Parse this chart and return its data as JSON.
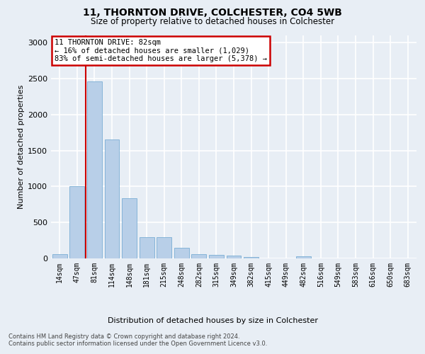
{
  "title": "11, THORNTON DRIVE, COLCHESTER, CO4 5WB",
  "subtitle": "Size of property relative to detached houses in Colchester",
  "xlabel": "Distribution of detached houses by size in Colchester",
  "ylabel": "Number of detached properties",
  "bar_labels": [
    "14sqm",
    "47sqm",
    "81sqm",
    "114sqm",
    "148sqm",
    "181sqm",
    "215sqm",
    "248sqm",
    "282sqm",
    "315sqm",
    "349sqm",
    "382sqm",
    "415sqm",
    "449sqm",
    "482sqm",
    "516sqm",
    "549sqm",
    "583sqm",
    "616sqm",
    "650sqm",
    "683sqm"
  ],
  "bar_values": [
    55,
    1000,
    2460,
    1650,
    840,
    300,
    300,
    150,
    55,
    50,
    40,
    20,
    0,
    0,
    30,
    0,
    0,
    0,
    0,
    0,
    0
  ],
  "bar_color": "#b8cfe8",
  "bar_edge_color": "#7aadd4",
  "vline_index": 2,
  "vline_color": "#cc0000",
  "annotation_text": "11 THORNTON DRIVE: 82sqm\n← 16% of detached houses are smaller (1,029)\n83% of semi-detached houses are larger (5,378) →",
  "annotation_box_facecolor": "#ffffff",
  "annotation_box_edgecolor": "#cc0000",
  "ylim": [
    0,
    3100
  ],
  "yticks": [
    0,
    500,
    1000,
    1500,
    2000,
    2500,
    3000
  ],
  "bg_color": "#e8eef5",
  "grid_color": "#ffffff",
  "footer_line1": "Contains HM Land Registry data © Crown copyright and database right 2024.",
  "footer_line2": "Contains public sector information licensed under the Open Government Licence v3.0."
}
